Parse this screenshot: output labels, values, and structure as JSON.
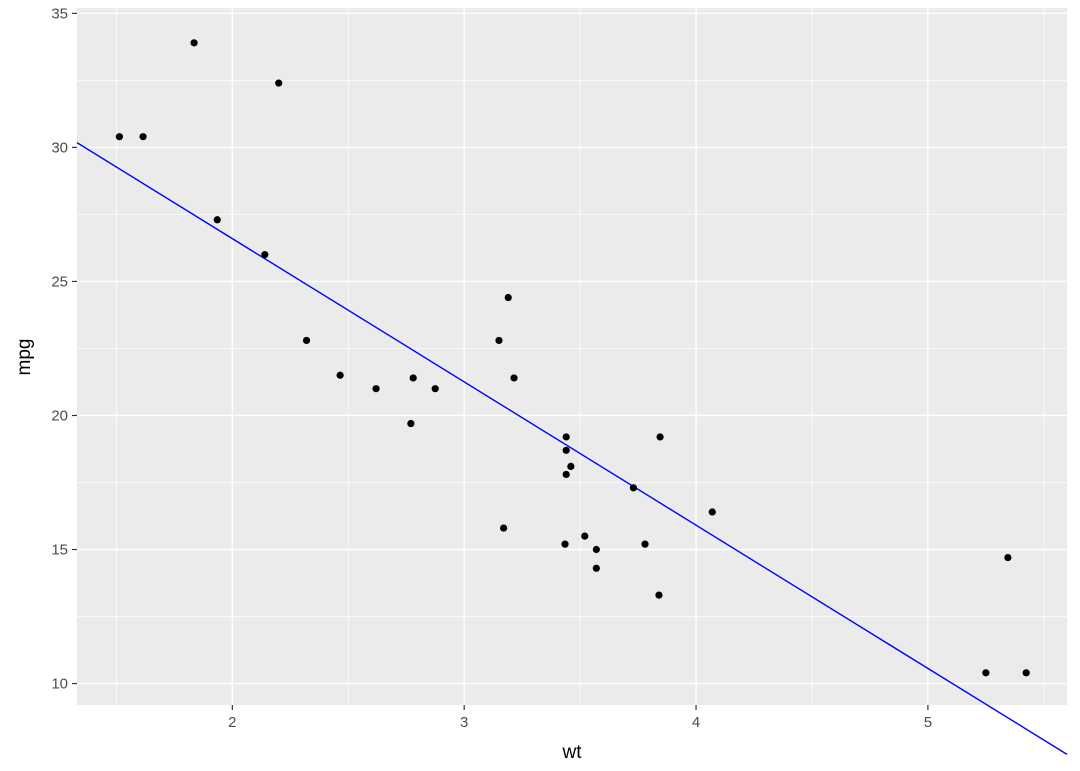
{
  "chart_data": {
    "type": "scatter",
    "title": "",
    "xlabel": "wt",
    "ylabel": "mpg",
    "xlim": [
      1.33,
      5.6
    ],
    "ylim": [
      9.2,
      35.2
    ],
    "x_ticks": [
      2,
      3,
      4,
      5
    ],
    "y_ticks": [
      10,
      15,
      20,
      25,
      30,
      35
    ],
    "x_tick_labels": [
      "2",
      "3",
      "4",
      "5"
    ],
    "y_tick_labels": [
      "10",
      "15",
      "20",
      "25",
      "30",
      "35"
    ],
    "grid": true,
    "legend": "none",
    "colors": {
      "panel": "#ebebeb",
      "grid": "#ffffff",
      "points": "#000000",
      "line": "#0000ff",
      "tick": "#333333"
    },
    "points": [
      {
        "x": 1.513,
        "y": 30.4
      },
      {
        "x": 1.615,
        "y": 30.4
      },
      {
        "x": 1.835,
        "y": 33.9
      },
      {
        "x": 1.935,
        "y": 27.3
      },
      {
        "x": 2.14,
        "y": 26.0
      },
      {
        "x": 2.2,
        "y": 32.4
      },
      {
        "x": 2.32,
        "y": 22.8
      },
      {
        "x": 2.465,
        "y": 21.5
      },
      {
        "x": 2.62,
        "y": 21.0
      },
      {
        "x": 2.77,
        "y": 19.7
      },
      {
        "x": 2.78,
        "y": 21.4
      },
      {
        "x": 2.875,
        "y": 21.0
      },
      {
        "x": 3.15,
        "y": 22.8
      },
      {
        "x": 3.17,
        "y": 15.8
      },
      {
        "x": 3.19,
        "y": 24.4
      },
      {
        "x": 3.215,
        "y": 21.4
      },
      {
        "x": 3.435,
        "y": 15.2
      },
      {
        "x": 3.44,
        "y": 18.7
      },
      {
        "x": 3.44,
        "y": 17.8
      },
      {
        "x": 3.44,
        "y": 19.2
      },
      {
        "x": 3.46,
        "y": 18.1
      },
      {
        "x": 3.52,
        "y": 15.5
      },
      {
        "x": 3.57,
        "y": 15.0
      },
      {
        "x": 3.57,
        "y": 14.3
      },
      {
        "x": 3.73,
        "y": 17.3
      },
      {
        "x": 3.78,
        "y": 15.2
      },
      {
        "x": 3.84,
        "y": 13.3
      },
      {
        "x": 3.845,
        "y": 19.2
      },
      {
        "x": 4.07,
        "y": 16.4
      },
      {
        "x": 5.25,
        "y": 10.4
      },
      {
        "x": 5.345,
        "y": 14.7
      },
      {
        "x": 5.424,
        "y": 10.4
      }
    ],
    "regression_line": {
      "intercept": 37.285,
      "slope": -5.344
    }
  }
}
